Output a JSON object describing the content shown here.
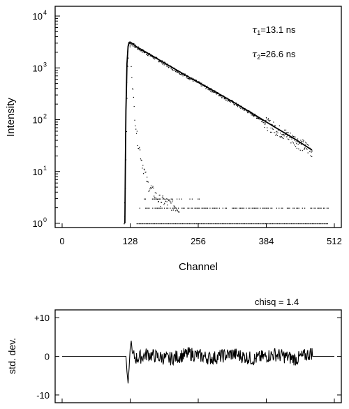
{
  "chart_data": [
    {
      "type": "scatter",
      "scale": "log",
      "title": "",
      "xlabel": "Channel",
      "ylabel": "Intensity",
      "xlim": [
        0,
        512
      ],
      "ylim": [
        1,
        10000
      ],
      "x_ticks": [
        0,
        128,
        256,
        384,
        512
      ],
      "x_tick_labels": [
        "0",
        "128",
        "256",
        "384",
        "512"
      ],
      "y_ticks": [
        1,
        10,
        100,
        1000,
        10000
      ],
      "y_tick_labels": [
        "10",
        "10",
        "10",
        "10",
        "10"
      ],
      "y_tick_exponents": [
        "0",
        "1",
        "2",
        "3",
        "4"
      ],
      "annotations": [
        {
          "symbol": "τ",
          "sub": "1",
          "text": "=13.1  ns"
        },
        {
          "symbol": "τ",
          "sub": "2",
          "text": "=26.6  ns"
        }
      ],
      "series": [
        {
          "style": "points",
          "description_values": "decay data",
          "x": [
            116,
            118,
            120,
            122,
            124,
            126,
            128,
            132,
            140,
            160,
            180,
            200,
            240,
            280,
            320,
            360,
            400,
            440,
            470
          ],
          "y": [
            1,
            10,
            300,
            1500,
            2800,
            3200,
            3100,
            2900,
            2500,
            1900,
            1450,
            1100,
            640,
            380,
            220,
            125,
            70,
            40,
            25
          ]
        },
        {
          "style": "points",
          "description_values": "instrument response",
          "x": [
            116,
            118,
            120,
            122,
            124,
            126,
            128,
            130,
            134,
            140,
            150,
            160,
            180,
            200,
            220
          ],
          "y": [
            1,
            3,
            40,
            600,
            2200,
            3000,
            2500,
            900,
            200,
            50,
            15,
            6,
            3,
            2.5,
            2
          ]
        },
        {
          "style": "line",
          "description_values": "fit",
          "x": [
            118,
            120,
            122,
            124,
            126,
            128,
            132,
            140,
            160,
            200,
            240,
            280,
            320,
            360,
            400,
            440,
            470
          ],
          "y": [
            1,
            150,
            1200,
            2600,
            3100,
            3150,
            2950,
            2550,
            1950,
            1120,
            650,
            385,
            225,
            128,
            72,
            41,
            26
          ]
        }
      ]
    },
    {
      "type": "line",
      "title": "chisq  =  1.4",
      "xlabel": "",
      "ylabel": "std. dev.",
      "xlim": [
        0,
        512
      ],
      "ylim": [
        -12,
        12
      ],
      "y_ticks": [
        10,
        0,
        -10
      ],
      "y_tick_labels": [
        "+10",
        "0",
        "-10"
      ],
      "series": [
        {
          "x": [
            0,
            120,
            122,
            124,
            126,
            128,
            130,
            132,
            140,
            160,
            200,
            240,
            280,
            320,
            360,
            400,
            440,
            470,
            512
          ],
          "y": [
            0,
            0,
            -4,
            -7,
            -3,
            2,
            4,
            1,
            -1.5,
            1.5,
            -2,
            2,
            -1.5,
            1.8,
            -2,
            1.5,
            -2,
            2.5,
            0
          ]
        }
      ]
    }
  ]
}
